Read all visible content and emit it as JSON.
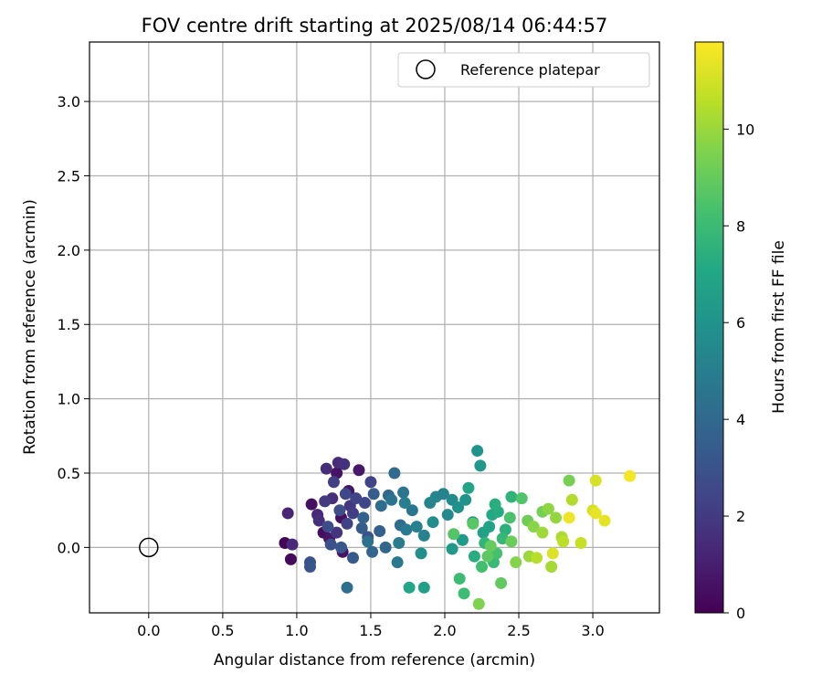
{
  "chart_data": {
    "type": "scatter",
    "title": "FOV centre drift starting at 2025/08/14 06:44:57",
    "xlabel": "Angular distance from reference (arcmin)",
    "ylabel": "Rotation from reference (arcmin)",
    "xlim": [
      -0.4,
      3.45
    ],
    "ylim": [
      -0.44,
      3.4
    ],
    "x_ticks": [
      0.0,
      0.5,
      1.0,
      1.5,
      2.0,
      2.5,
      3.0
    ],
    "y_ticks": [
      0.0,
      0.5,
      1.0,
      1.5,
      2.0,
      2.5,
      3.0
    ],
    "grid": true,
    "legend": {
      "placement": "top-right",
      "entries": [
        {
          "label": "Reference platepar",
          "marker": "open-circle"
        }
      ]
    },
    "reference_point": {
      "label": "Reference platepar",
      "x": 0.0,
      "y": 0.0
    },
    "colorbar": {
      "label": "Hours from first FF file",
      "range": [
        0,
        11.8
      ],
      "ticks": [
        0,
        2,
        4,
        6,
        8,
        10
      ],
      "colormap": "viridis"
    },
    "points": [
      [
        0.92,
        0.03,
        0.1
      ],
      [
        0.96,
        -0.08,
        0.3
      ],
      [
        1.1,
        0.29,
        0.5
      ],
      [
        1.18,
        0.1,
        0.4
      ],
      [
        1.27,
        0.5,
        0.6
      ],
      [
        1.3,
        0.2,
        0.5
      ],
      [
        1.35,
        0.38,
        0.7
      ],
      [
        1.42,
        0.52,
        0.8
      ],
      [
        1.31,
        -0.03,
        0.6
      ],
      [
        1.22,
        0.06,
        0.7
      ],
      [
        0.94,
        0.23,
        1.2
      ],
      [
        0.97,
        0.02,
        1.4
      ],
      [
        1.14,
        0.22,
        1.3
      ],
      [
        1.2,
        0.53,
        1.5
      ],
      [
        1.24,
        0.33,
        1.6
      ],
      [
        1.28,
        0.57,
        1.4
      ],
      [
        1.32,
        0.56,
        1.7
      ],
      [
        1.27,
        0.1,
        1.8
      ],
      [
        1.36,
        0.28,
        1.9
      ],
      [
        1.15,
        0.18,
        1.6
      ],
      [
        1.19,
        0.31,
        2.0
      ],
      [
        1.25,
        0.44,
        2.2
      ],
      [
        1.34,
        0.16,
        2.3
      ],
      [
        1.38,
        0.23,
        2.1
      ],
      [
        1.4,
        0.33,
        2.4
      ],
      [
        1.46,
        0.3,
        2.5
      ],
      [
        1.5,
        0.44,
        2.4
      ],
      [
        1.21,
        0.14,
        2.7
      ],
      [
        1.29,
        0.25,
        2.8
      ],
      [
        1.33,
        0.36,
        2.6
      ],
      [
        1.09,
        -0.1,
        3.0
      ],
      [
        1.09,
        -0.13,
        3.1
      ],
      [
        1.23,
        0.02,
        2.9
      ],
      [
        1.3,
        0.0,
        3.2
      ],
      [
        1.38,
        -0.07,
        3.3
      ],
      [
        1.44,
        0.13,
        3.4
      ],
      [
        1.48,
        0.07,
        3.0
      ],
      [
        1.52,
        0.36,
        3.5
      ],
      [
        1.56,
        0.11,
        3.6
      ],
      [
        1.45,
        0.2,
        3.7
      ],
      [
        1.51,
        -0.03,
        3.8
      ],
      [
        1.6,
        0.0,
        3.9
      ],
      [
        1.62,
        0.35,
        4.0
      ],
      [
        1.66,
        0.5,
        4.1
      ],
      [
        1.7,
        0.15,
        4.2
      ],
      [
        1.34,
        -0.27,
        4.3
      ],
      [
        1.48,
        0.04,
        4.4
      ],
      [
        1.57,
        0.28,
        4.2
      ],
      [
        1.64,
        0.32,
        4.5
      ],
      [
        1.72,
        0.37,
        4.6
      ],
      [
        1.68,
        -0.1,
        4.7
      ],
      [
        1.74,
        0.12,
        4.8
      ],
      [
        1.78,
        0.25,
        4.6
      ],
      [
        1.69,
        0.03,
        4.9
      ],
      [
        1.73,
        0.3,
        5.0
      ],
      [
        1.81,
        0.14,
        5.1
      ],
      [
        1.86,
        0.08,
        5.2
      ],
      [
        1.9,
        0.3,
        5.3
      ],
      [
        1.94,
        0.34,
        5.4
      ],
      [
        1.99,
        0.36,
        5.2
      ],
      [
        2.02,
        0.22,
        5.5
      ],
      [
        2.05,
        0.32,
        5.6
      ],
      [
        1.92,
        0.17,
        5.7
      ],
      [
        1.84,
        -0.04,
        5.8
      ],
      [
        2.09,
        0.27,
        5.9
      ],
      [
        2.14,
        0.32,
        6.0
      ],
      [
        2.22,
        0.65,
        6.1
      ],
      [
        2.24,
        0.55,
        6.2
      ],
      [
        2.05,
        -0.01,
        6.3
      ],
      [
        2.12,
        0.05,
        6.4
      ],
      [
        2.19,
        0.17,
        6.5
      ],
      [
        1.86,
        -0.27,
        6.6
      ],
      [
        2.26,
        0.1,
        6.7
      ],
      [
        2.3,
        0.14,
        6.8
      ],
      [
        2.16,
        0.4,
        6.9
      ],
      [
        1.76,
        -0.27,
        7.0
      ],
      [
        2.32,
        0.22,
        7.1
      ],
      [
        2.36,
        0.24,
        7.2
      ],
      [
        2.2,
        -0.06,
        7.3
      ],
      [
        2.34,
        0.29,
        7.4
      ],
      [
        2.41,
        0.12,
        7.5
      ],
      [
        2.45,
        0.34,
        7.6
      ],
      [
        2.27,
        0.03,
        7.7
      ],
      [
        2.39,
        0.06,
        7.8
      ],
      [
        2.33,
        -0.1,
        7.9
      ],
      [
        2.1,
        -0.21,
        8.0
      ],
      [
        2.13,
        -0.31,
        8.1
      ],
      [
        2.25,
        -0.13,
        8.2
      ],
      [
        2.35,
        -0.04,
        8.3
      ],
      [
        2.44,
        0.2,
        8.4
      ],
      [
        2.52,
        0.33,
        8.5
      ],
      [
        2.06,
        0.09,
        8.6
      ],
      [
        2.19,
        0.16,
        8.7
      ],
      [
        2.29,
        -0.06,
        8.8
      ],
      [
        2.38,
        -0.24,
        8.9
      ],
      [
        2.31,
        0.01,
        9.0
      ],
      [
        2.45,
        0.04,
        9.1
      ],
      [
        2.56,
        0.18,
        9.2
      ],
      [
        2.66,
        0.24,
        9.3
      ],
      [
        2.84,
        0.45,
        9.4
      ],
      [
        2.23,
        -0.38,
        9.5
      ],
      [
        2.48,
        -0.1,
        9.6
      ],
      [
        2.6,
        0.14,
        9.7
      ],
      [
        2.7,
        0.26,
        9.8
      ],
      [
        2.75,
        0.2,
        9.9
      ],
      [
        2.57,
        -0.06,
        10.0
      ],
      [
        2.66,
        0.1,
        10.1
      ],
      [
        2.72,
        -0.13,
        10.2
      ],
      [
        2.79,
        0.07,
        10.3
      ],
      [
        2.86,
        0.32,
        10.4
      ],
      [
        2.62,
        -0.07,
        10.5
      ],
      [
        2.8,
        0.04,
        10.6
      ],
      [
        2.92,
        0.03,
        10.8
      ],
      [
        3.0,
        0.25,
        11.0
      ],
      [
        3.02,
        0.45,
        11.1
      ],
      [
        3.08,
        0.18,
        11.3
      ],
      [
        3.25,
        0.48,
        11.6
      ],
      [
        2.84,
        0.2,
        11.5
      ],
      [
        2.73,
        -0.04,
        11.2
      ],
      [
        3.02,
        0.23,
        11.4
      ]
    ]
  }
}
